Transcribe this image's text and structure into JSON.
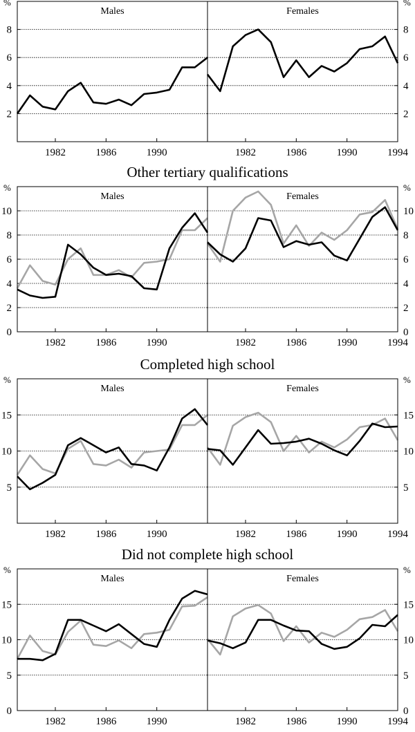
{
  "chart_data": [
    {
      "type": "line",
      "title": "Males",
      "y_unit": "%",
      "y_axis_side": "left",
      "xlim": [
        1979,
        1994
      ],
      "xticks": [
        1982,
        1986,
        1990
      ],
      "ylim": [
        0,
        10
      ],
      "yticks": [
        2,
        4,
        6,
        8
      ],
      "grid": true,
      "x": [
        1979,
        1980,
        1981,
        1982,
        1983,
        1984,
        1985,
        1986,
        1987,
        1988,
        1989,
        1990,
        1991,
        1992,
        1993,
        1994
      ],
      "series": [
        {
          "color": "#000000",
          "values": [
            2.0,
            3.3,
            2.5,
            2.3,
            3.6,
            4.2,
            2.8,
            2.7,
            3.0,
            2.6,
            3.4,
            3.5,
            3.7,
            5.3,
            5.3,
            6.0
          ]
        }
      ]
    },
    {
      "type": "line",
      "title": "Females",
      "y_unit": "%",
      "y_axis_side": "right",
      "xlim": [
        1979,
        1994
      ],
      "xticks": [
        1982,
        1986,
        1990,
        1994
      ],
      "ylim": [
        0,
        10
      ],
      "yticks": [
        2,
        4,
        6,
        8
      ],
      "grid": true,
      "x": [
        1979,
        1980,
        1981,
        1982,
        1983,
        1984,
        1985,
        1986,
        1987,
        1988,
        1989,
        1990,
        1991,
        1992,
        1993,
        1994
      ],
      "series": [
        {
          "color": "#000000",
          "values": [
            4.8,
            3.6,
            6.8,
            7.6,
            8.0,
            7.1,
            4.6,
            5.8,
            4.6,
            5.4,
            5.0,
            5.6,
            6.6,
            6.8,
            7.5,
            5.6
          ]
        }
      ]
    },
    {
      "type": "line",
      "heading": "Other tertiary qualifications",
      "title": "Males",
      "y_unit": "%",
      "y_axis_side": "left",
      "xlim": [
        1979,
        1994
      ],
      "xticks": [
        1982,
        1986,
        1990
      ],
      "ylim": [
        0,
        12
      ],
      "yticks": [
        0,
        2,
        4,
        6,
        8,
        10
      ],
      "grid": true,
      "x": [
        1979,
        1980,
        1981,
        1982,
        1983,
        1984,
        1985,
        1986,
        1987,
        1988,
        1989,
        1990,
        1991,
        1992,
        1993,
        1994
      ],
      "series": [
        {
          "color": "#000000",
          "values": [
            3.5,
            3.0,
            2.8,
            2.9,
            7.2,
            6.4,
            5.3,
            4.7,
            4.8,
            4.6,
            3.6,
            3.5,
            6.9,
            8.6,
            9.8,
            8.2
          ]
        },
        {
          "color": "#a6a6a6",
          "values": [
            3.6,
            5.5,
            4.2,
            3.9,
            6.0,
            6.9,
            4.7,
            4.7,
            5.1,
            4.5,
            5.7,
            5.8,
            6.0,
            8.4,
            8.4,
            9.4
          ]
        }
      ]
    },
    {
      "type": "line",
      "title": "Females",
      "y_unit": "%",
      "y_axis_side": "right",
      "xlim": [
        1979,
        1994
      ],
      "xticks": [
        1982,
        1986,
        1990,
        1994
      ],
      "ylim": [
        0,
        12
      ],
      "yticks": [
        0,
        2,
        4,
        6,
        8,
        10
      ],
      "grid": true,
      "x": [
        1979,
        1980,
        1981,
        1982,
        1983,
        1984,
        1985,
        1986,
        1987,
        1988,
        1989,
        1990,
        1991,
        1992,
        1993,
        1994
      ],
      "series": [
        {
          "color": "#000000",
          "values": [
            7.4,
            6.4,
            5.8,
            6.9,
            9.4,
            9.2,
            7.0,
            7.5,
            7.2,
            7.4,
            6.3,
            5.9,
            7.7,
            9.5,
            10.3,
            8.4
          ]
        },
        {
          "color": "#a6a6a6",
          "values": [
            7.3,
            5.8,
            10.0,
            11.1,
            11.6,
            10.5,
            7.3,
            8.8,
            7.1,
            8.2,
            7.6,
            8.4,
            9.7,
            9.9,
            10.9,
            8.5
          ]
        }
      ]
    },
    {
      "type": "line",
      "heading": "Completed high school",
      "title": "Males",
      "y_unit": "%",
      "y_axis_side": "left",
      "xlim": [
        1979,
        1994
      ],
      "xticks": [
        1982,
        1986,
        1990
      ],
      "ylim": [
        0,
        20
      ],
      "yticks": [
        5,
        10,
        15
      ],
      "grid": true,
      "x": [
        1979,
        1980,
        1981,
        1982,
        1983,
        1984,
        1985,
        1986,
        1987,
        1988,
        1989,
        1990,
        1991,
        1992,
        1993,
        1994
      ],
      "series": [
        {
          "color": "#000000",
          "values": [
            6.5,
            4.7,
            5.6,
            6.7,
            10.8,
            11.8,
            10.8,
            9.8,
            10.5,
            8.2,
            8.0,
            7.3,
            10.5,
            14.5,
            15.8,
            13.6
          ]
        },
        {
          "color": "#a6a6a6",
          "values": [
            6.7,
            9.4,
            7.5,
            6.9,
            10.3,
            11.4,
            8.2,
            8.0,
            8.8,
            7.7,
            9.8,
            10.0,
            10.2,
            13.6,
            13.6,
            15.0
          ]
        }
      ]
    },
    {
      "type": "line",
      "title": "Females",
      "y_unit": "%",
      "y_axis_side": "right",
      "xlim": [
        1979,
        1994
      ],
      "xticks": [
        1982,
        1986,
        1990,
        1994
      ],
      "ylim": [
        0,
        20
      ],
      "yticks": [
        5,
        10,
        15
      ],
      "grid": true,
      "x": [
        1979,
        1980,
        1981,
        1982,
        1983,
        1984,
        1985,
        1986,
        1987,
        1988,
        1989,
        1990,
        1991,
        1992,
        1993,
        1994
      ],
      "series": [
        {
          "color": "#000000",
          "values": [
            10.3,
            10.1,
            8.1,
            10.5,
            12.9,
            11.0,
            11.1,
            11.3,
            11.7,
            11.0,
            10.1,
            9.4,
            11.4,
            13.8,
            13.3,
            13.4
          ]
        },
        {
          "color": "#a6a6a6",
          "values": [
            10.5,
            8.1,
            13.5,
            14.7,
            15.3,
            14.0,
            10.0,
            12.1,
            9.8,
            11.3,
            10.5,
            11.6,
            13.3,
            13.6,
            14.5,
            11.5
          ]
        }
      ]
    },
    {
      "type": "line",
      "heading": "Did not complete high school",
      "title": "Males",
      "y_unit": "%",
      "y_axis_side": "left",
      "xlim": [
        1979,
        1994
      ],
      "xticks": [
        1982,
        1986,
        1990
      ],
      "ylim": [
        0,
        20
      ],
      "yticks": [
        0,
        5,
        10,
        15
      ],
      "grid": true,
      "x": [
        1979,
        1980,
        1981,
        1982,
        1983,
        1984,
        1985,
        1986,
        1987,
        1988,
        1989,
        1990,
        1991,
        1992,
        1993,
        1994
      ],
      "series": [
        {
          "color": "#000000",
          "values": [
            7.3,
            7.3,
            7.1,
            8.0,
            12.8,
            12.8,
            12.0,
            11.2,
            12.2,
            10.8,
            9.4,
            9.0,
            12.8,
            15.8,
            16.9,
            16.4
          ]
        },
        {
          "color": "#a6a6a6",
          "values": [
            7.3,
            10.6,
            8.4,
            7.9,
            11.1,
            12.7,
            9.3,
            9.1,
            9.9,
            8.8,
            10.8,
            11.0,
            11.4,
            14.7,
            14.8,
            16.0
          ]
        }
      ]
    },
    {
      "type": "line",
      "title": "Females",
      "y_unit": "%",
      "y_axis_side": "right",
      "xlim": [
        1979,
        1994
      ],
      "xticks": [
        1982,
        1986,
        1990,
        1994
      ],
      "ylim": [
        0,
        20
      ],
      "yticks": [
        0,
        5,
        10,
        15
      ],
      "grid": true,
      "x": [
        1979,
        1980,
        1981,
        1982,
        1983,
        1984,
        1985,
        1986,
        1987,
        1988,
        1989,
        1990,
        1991,
        1992,
        1993,
        1994
      ],
      "series": [
        {
          "color": "#000000",
          "values": [
            9.9,
            9.5,
            8.8,
            9.6,
            12.8,
            12.8,
            12.0,
            11.3,
            11.2,
            9.4,
            8.7,
            9.0,
            10.2,
            12.1,
            11.9,
            13.5
          ]
        },
        {
          "color": "#a6a6a6",
          "values": [
            10.1,
            7.9,
            13.3,
            14.4,
            14.9,
            13.7,
            9.8,
            11.9,
            9.6,
            11.0,
            10.4,
            11.4,
            12.9,
            13.2,
            14.2,
            11.2
          ]
        }
      ]
    }
  ]
}
